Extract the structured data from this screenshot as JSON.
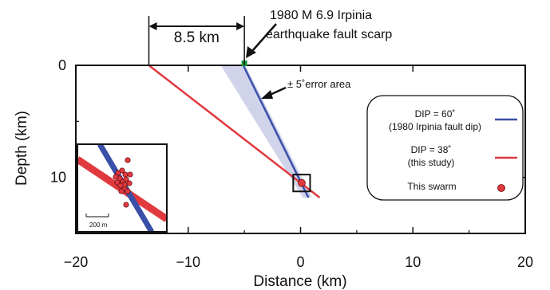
{
  "chart_data": {
    "type": "line",
    "xlabel": "Distance (km)",
    "ylabel": "Depth (km)",
    "xlim": [
      -20,
      20
    ],
    "ylim": [
      0,
      15
    ],
    "y_inverted": true,
    "xticks": [
      "−20",
      "−10",
      "0",
      "10",
      "20"
    ],
    "yticks": [
      "0",
      "10"
    ],
    "grid": false,
    "legend_placement": "right",
    "series": [
      {
        "name": "DIP = 60˚",
        "name_sub": "(1980 Irpinia fault dip)",
        "color": "#3a4fa8",
        "x": [
          -5.1,
          0.7
        ],
        "y": [
          0,
          11.8
        ]
      },
      {
        "name": "DIP = 38˚",
        "name_sub": "(this study)",
        "color": "#e0393e",
        "x": [
          -13.5,
          1.7
        ],
        "y": [
          0,
          11.8
        ]
      }
    ],
    "error_area": {
      "label": "± 5˚error area",
      "color": "#c8cbe6",
      "x_top": [
        -7.1,
        -4.9
      ],
      "y_top": 0,
      "x_bottom": [
        0.2,
        1.0
      ],
      "y_bottom": 11.8
    },
    "swarm": {
      "label": "This swarm",
      "color": "#e0393e",
      "x": 0.1,
      "y": 10.5,
      "box_halfwidth_km": 0.75
    },
    "scarp": {
      "label_line1": "1980 M 6.9 Irpinia",
      "label_line2": "earthquake fault scarp",
      "x": -5,
      "y": 0,
      "color": "#1a9c3a"
    },
    "dimension": {
      "label": "8.5 km",
      "from_x": -13.5,
      "to_x": -5
    },
    "inset": {
      "scale_label": "200 m",
      "red_line_color": "#e0393e",
      "blue_line_color": "#3a4fa8"
    }
  }
}
